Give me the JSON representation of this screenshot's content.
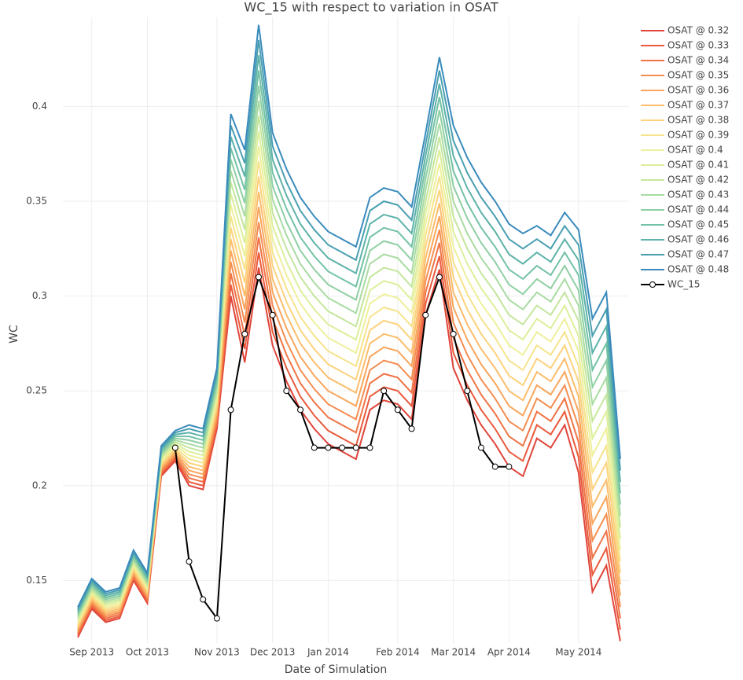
{
  "chart_data": {
    "type": "line",
    "title": "WC_15 with respect to variation in OSAT",
    "x_label": "Date of Simulation",
    "y_label": "WC",
    "categories": [
      null,
      "Sep 2013",
      null,
      null,
      null,
      "Oct 2013",
      null,
      null,
      null,
      null,
      "Nov 2013",
      null,
      null,
      null,
      "Dec 2013",
      null,
      null,
      null,
      "Jan 2014",
      null,
      null,
      null,
      null,
      "Feb 2014",
      null,
      null,
      null,
      "Mar 2014",
      null,
      null,
      null,
      "Apr 2014",
      null,
      null,
      null,
      null,
      "May 2014",
      null,
      null,
      null
    ],
    "ylim": [
      0.117,
      0.447
    ],
    "yticks": [
      0.15,
      0.2,
      0.25,
      0.3,
      0.35,
      0.4
    ],
    "grid": true,
    "legend": "right",
    "series": [
      {
        "name": "OSAT @ 0.32",
        "color": "#e0453a",
        "values": [
          0.12,
          0.135,
          0.128,
          0.13,
          0.15,
          0.138,
          0.205,
          0.213,
          0.2,
          0.198,
          0.23,
          0.3,
          0.265,
          0.315,
          0.274,
          0.255,
          0.24,
          0.23,
          0.222,
          0.218,
          0.214,
          0.24,
          0.245,
          0.243,
          0.235,
          0.29,
          0.314,
          0.262,
          0.245,
          0.232,
          0.222,
          0.21,
          0.205,
          0.225,
          0.22,
          0.232,
          0.207,
          0.144,
          0.158,
          0.118
        ]
      },
      {
        "name": "OSAT @ 0.33",
        "color": "#ea5a3c",
        "values": [
          0.121,
          0.136,
          0.129,
          0.131,
          0.151,
          0.139,
          0.206,
          0.214,
          0.202,
          0.2,
          0.232,
          0.306,
          0.272,
          0.323,
          0.281,
          0.262,
          0.247,
          0.237,
          0.229,
          0.225,
          0.221,
          0.247,
          0.252,
          0.25,
          0.242,
          0.296,
          0.321,
          0.27,
          0.253,
          0.24,
          0.23,
          0.218,
          0.213,
          0.232,
          0.227,
          0.239,
          0.215,
          0.153,
          0.167,
          0.124
        ]
      },
      {
        "name": "OSAT @ 0.34",
        "color": "#f07345",
        "values": [
          0.122,
          0.137,
          0.13,
          0.132,
          0.152,
          0.14,
          0.207,
          0.215,
          0.204,
          0.202,
          0.234,
          0.312,
          0.279,
          0.331,
          0.288,
          0.269,
          0.254,
          0.244,
          0.236,
          0.232,
          0.228,
          0.254,
          0.259,
          0.257,
          0.249,
          0.302,
          0.328,
          0.278,
          0.261,
          0.248,
          0.238,
          0.226,
          0.221,
          0.239,
          0.234,
          0.246,
          0.223,
          0.162,
          0.176,
          0.13
        ]
      },
      {
        "name": "OSAT @ 0.35",
        "color": "#f58d50",
        "values": [
          0.123,
          0.138,
          0.131,
          0.133,
          0.153,
          0.141,
          0.208,
          0.216,
          0.206,
          0.204,
          0.236,
          0.318,
          0.286,
          0.339,
          0.295,
          0.276,
          0.261,
          0.251,
          0.243,
          0.239,
          0.235,
          0.261,
          0.266,
          0.264,
          0.256,
          0.308,
          0.335,
          0.286,
          0.269,
          0.256,
          0.246,
          0.234,
          0.229,
          0.246,
          0.241,
          0.253,
          0.231,
          0.171,
          0.185,
          0.136
        ]
      },
      {
        "name": "OSAT @ 0.36",
        "color": "#f9a65c",
        "values": [
          0.124,
          0.139,
          0.132,
          0.134,
          0.154,
          0.142,
          0.209,
          0.217,
          0.208,
          0.206,
          0.238,
          0.324,
          0.293,
          0.347,
          0.302,
          0.283,
          0.268,
          0.258,
          0.25,
          0.246,
          0.242,
          0.268,
          0.273,
          0.271,
          0.263,
          0.314,
          0.342,
          0.294,
          0.277,
          0.264,
          0.254,
          0.242,
          0.237,
          0.253,
          0.248,
          0.26,
          0.239,
          0.18,
          0.194,
          0.142
        ]
      },
      {
        "name": "OSAT @ 0.37",
        "color": "#fcbd6b",
        "values": [
          0.125,
          0.14,
          0.133,
          0.135,
          0.155,
          0.143,
          0.21,
          0.218,
          0.21,
          0.208,
          0.24,
          0.33,
          0.3,
          0.355,
          0.309,
          0.29,
          0.275,
          0.265,
          0.257,
          0.253,
          0.249,
          0.275,
          0.28,
          0.278,
          0.27,
          0.32,
          0.349,
          0.302,
          0.285,
          0.272,
          0.262,
          0.25,
          0.245,
          0.26,
          0.255,
          0.267,
          0.247,
          0.189,
          0.203,
          0.148
        ]
      },
      {
        "name": "OSAT @ 0.38",
        "color": "#fdd27c",
        "values": [
          0.126,
          0.141,
          0.134,
          0.136,
          0.156,
          0.144,
          0.211,
          0.219,
          0.212,
          0.21,
          0.242,
          0.336,
          0.307,
          0.363,
          0.316,
          0.297,
          0.282,
          0.272,
          0.264,
          0.26,
          0.256,
          0.282,
          0.287,
          0.285,
          0.277,
          0.326,
          0.356,
          0.31,
          0.293,
          0.28,
          0.27,
          0.258,
          0.253,
          0.267,
          0.262,
          0.274,
          0.255,
          0.198,
          0.212,
          0.154
        ]
      },
      {
        "name": "OSAT @ 0.39",
        "color": "#f6e38c",
        "values": [
          0.127,
          0.142,
          0.135,
          0.137,
          0.157,
          0.145,
          0.212,
          0.22,
          0.214,
          0.212,
          0.244,
          0.342,
          0.314,
          0.371,
          0.323,
          0.304,
          0.289,
          0.279,
          0.271,
          0.267,
          0.263,
          0.289,
          0.294,
          0.292,
          0.284,
          0.332,
          0.363,
          0.318,
          0.301,
          0.288,
          0.278,
          0.266,
          0.261,
          0.274,
          0.269,
          0.281,
          0.263,
          0.207,
          0.221,
          0.16
        ]
      },
      {
        "name": "OSAT @ 0.4",
        "color": "#eef09b",
        "values": [
          0.128,
          0.143,
          0.136,
          0.138,
          0.158,
          0.146,
          0.213,
          0.221,
          0.216,
          0.214,
          0.246,
          0.348,
          0.321,
          0.379,
          0.33,
          0.311,
          0.296,
          0.286,
          0.278,
          0.274,
          0.27,
          0.296,
          0.301,
          0.299,
          0.291,
          0.338,
          0.37,
          0.326,
          0.309,
          0.296,
          0.286,
          0.274,
          0.269,
          0.281,
          0.276,
          0.288,
          0.271,
          0.216,
          0.23,
          0.166
        ]
      },
      {
        "name": "OSAT @ 0.41",
        "color": "#dcef9b",
        "values": [
          0.129,
          0.144,
          0.137,
          0.139,
          0.159,
          0.147,
          0.214,
          0.222,
          0.218,
          0.216,
          0.248,
          0.354,
          0.328,
          0.387,
          0.337,
          0.318,
          0.303,
          0.293,
          0.285,
          0.281,
          0.277,
          0.303,
          0.308,
          0.306,
          0.298,
          0.344,
          0.377,
          0.334,
          0.317,
          0.304,
          0.294,
          0.282,
          0.277,
          0.288,
          0.283,
          0.295,
          0.279,
          0.225,
          0.239,
          0.172
        ]
      },
      {
        "name": "OSAT @ 0.42",
        "color": "#c4e69d",
        "values": [
          0.13,
          0.145,
          0.138,
          0.14,
          0.16,
          0.148,
          0.215,
          0.223,
          0.22,
          0.218,
          0.25,
          0.36,
          0.335,
          0.395,
          0.344,
          0.325,
          0.31,
          0.3,
          0.292,
          0.288,
          0.284,
          0.31,
          0.315,
          0.313,
          0.305,
          0.35,
          0.384,
          0.342,
          0.325,
          0.312,
          0.302,
          0.29,
          0.285,
          0.295,
          0.29,
          0.302,
          0.287,
          0.234,
          0.248,
          0.178
        ]
      },
      {
        "name": "OSAT @ 0.43",
        "color": "#a9dba2",
        "values": [
          0.131,
          0.146,
          0.139,
          0.141,
          0.161,
          0.149,
          0.216,
          0.224,
          0.222,
          0.22,
          0.252,
          0.366,
          0.342,
          0.403,
          0.351,
          0.332,
          0.317,
          0.307,
          0.299,
          0.295,
          0.291,
          0.317,
          0.322,
          0.32,
          0.312,
          0.356,
          0.391,
          0.35,
          0.333,
          0.32,
          0.31,
          0.298,
          0.293,
          0.302,
          0.297,
          0.309,
          0.295,
          0.243,
          0.257,
          0.184
        ]
      },
      {
        "name": "OSAT @ 0.44",
        "color": "#8ecfa3",
        "values": [
          0.132,
          0.147,
          0.14,
          0.142,
          0.162,
          0.15,
          0.217,
          0.225,
          0.224,
          0.222,
          0.254,
          0.372,
          0.349,
          0.411,
          0.358,
          0.339,
          0.324,
          0.314,
          0.306,
          0.302,
          0.298,
          0.324,
          0.329,
          0.327,
          0.319,
          0.362,
          0.398,
          0.358,
          0.341,
          0.328,
          0.318,
          0.306,
          0.301,
          0.309,
          0.304,
          0.316,
          0.303,
          0.252,
          0.266,
          0.19
        ]
      },
      {
        "name": "OSAT @ 0.45",
        "color": "#73c2a5",
        "values": [
          0.133,
          0.148,
          0.141,
          0.143,
          0.163,
          0.151,
          0.218,
          0.226,
          0.226,
          0.224,
          0.256,
          0.378,
          0.356,
          0.419,
          0.365,
          0.346,
          0.331,
          0.321,
          0.313,
          0.309,
          0.305,
          0.331,
          0.336,
          0.334,
          0.326,
          0.368,
          0.405,
          0.366,
          0.349,
          0.336,
          0.326,
          0.314,
          0.309,
          0.316,
          0.311,
          0.323,
          0.311,
          0.261,
          0.275,
          0.196
        ]
      },
      {
        "name": "OSAT @ 0.46",
        "color": "#5db2a9",
        "values": [
          0.134,
          0.149,
          0.142,
          0.144,
          0.164,
          0.152,
          0.219,
          0.227,
          0.228,
          0.226,
          0.258,
          0.384,
          0.363,
          0.427,
          0.372,
          0.353,
          0.338,
          0.328,
          0.32,
          0.316,
          0.312,
          0.338,
          0.343,
          0.341,
          0.333,
          0.374,
          0.412,
          0.374,
          0.357,
          0.344,
          0.334,
          0.322,
          0.317,
          0.323,
          0.318,
          0.33,
          0.319,
          0.27,
          0.284,
          0.202
        ]
      },
      {
        "name": "OSAT @ 0.47",
        "color": "#4a9fb1",
        "values": [
          0.135,
          0.15,
          0.143,
          0.145,
          0.165,
          0.153,
          0.22,
          0.228,
          0.23,
          0.228,
          0.26,
          0.39,
          0.37,
          0.435,
          0.379,
          0.36,
          0.345,
          0.335,
          0.327,
          0.323,
          0.319,
          0.345,
          0.35,
          0.348,
          0.34,
          0.38,
          0.419,
          0.382,
          0.365,
          0.352,
          0.342,
          0.33,
          0.325,
          0.33,
          0.325,
          0.337,
          0.327,
          0.279,
          0.293,
          0.208
        ]
      },
      {
        "name": "OSAT @ 0.48",
        "color": "#3a8bbd",
        "values": [
          0.136,
          0.151,
          0.144,
          0.146,
          0.166,
          0.154,
          0.221,
          0.229,
          0.232,
          0.23,
          0.262,
          0.396,
          0.377,
          0.443,
          0.386,
          0.367,
          0.352,
          0.342,
          0.334,
          0.33,
          0.326,
          0.352,
          0.357,
          0.355,
          0.347,
          0.386,
          0.426,
          0.39,
          0.373,
          0.36,
          0.35,
          0.338,
          0.333,
          0.337,
          0.332,
          0.344,
          0.335,
          0.288,
          0.302,
          0.214
        ]
      },
      {
        "name": "WC_15",
        "color": "#000000",
        "markers": true,
        "values": [
          null,
          null,
          null,
          null,
          null,
          null,
          null,
          0.22,
          0.16,
          0.14,
          0.13,
          0.24,
          0.28,
          0.31,
          0.29,
          0.25,
          0.24,
          0.22,
          0.22,
          0.22,
          0.22,
          0.22,
          0.25,
          0.24,
          0.23,
          0.29,
          0.31,
          0.28,
          0.25,
          0.22,
          0.21,
          0.21,
          null,
          null,
          null,
          null,
          null,
          null,
          null,
          null
        ]
      }
    ]
  }
}
